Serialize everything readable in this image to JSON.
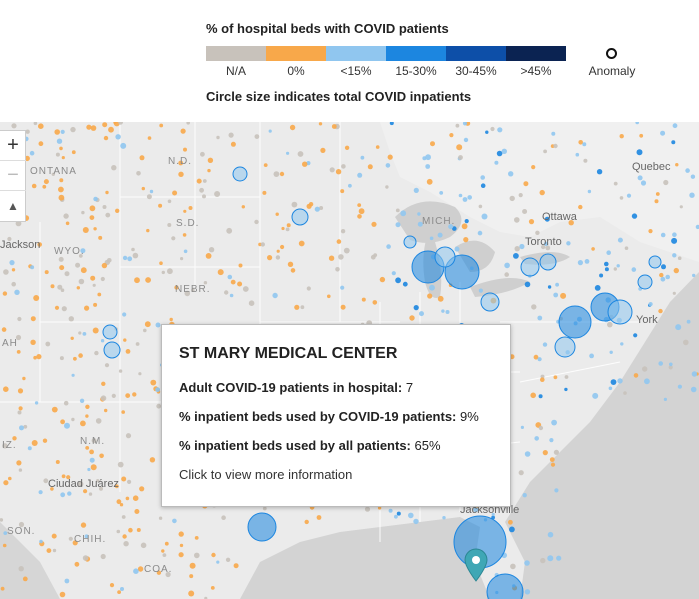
{
  "legend": {
    "title": "% of hospital beds with COVID patients",
    "categories": [
      {
        "label": "N/A",
        "color": "#c8c2bb"
      },
      {
        "label": "0%",
        "color": "#f8a84a"
      },
      {
        "label": "<15%",
        "color": "#90c6ef"
      },
      {
        "label": "15-30%",
        "color": "#1c86e0"
      },
      {
        "label": "30-45%",
        "color": "#0d4fa8"
      },
      {
        "label": ">45%",
        "color": "#0b2352"
      }
    ],
    "anomaly_label": "Anomaly",
    "note": "Circle size indicates total COVID inpatients"
  },
  "map": {
    "region_labels": {
      "montana": "ONTANA",
      "nd": "N.D.",
      "sd": "S.D.",
      "wyo": "WYO.",
      "nebr": "NEBR.",
      "mich": "MICH.",
      "nm": "N.M.",
      "son": "SON.",
      "chih": "CHIH.",
      "coa": "COA.",
      "ah": "AH",
      "iz": "IZ."
    },
    "city_labels": {
      "quebec": "Quebec",
      "ottawa": "Ottawa",
      "toronto": "Toronto",
      "jackson": "Jackson",
      "ciudad_juarez": "Ciudad Juárez",
      "new_york": "York",
      "jacksonville": "Jacksonville"
    },
    "controls": {
      "zoom_in": "+",
      "zoom_out": "−",
      "compass": "▲"
    }
  },
  "tooltip": {
    "title": "ST MARY MEDICAL CENTER",
    "rows": [
      {
        "label": "Adult COVID-19 patients in hospital:",
        "value": "7"
      },
      {
        "label": "% inpatient beds used by COVID-19 patients:",
        "value": "9%"
      },
      {
        "label": "% inpatient beds used by all patients:",
        "value": "65%"
      }
    ],
    "link": "Click to view more information"
  }
}
